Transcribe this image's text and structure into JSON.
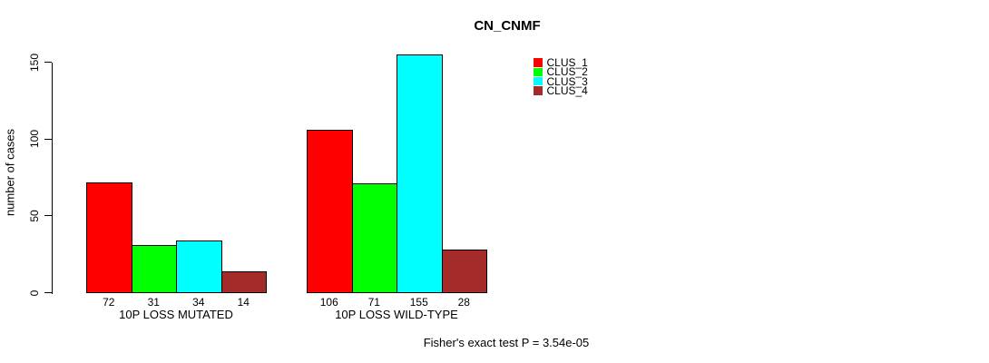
{
  "title": "CN_CNMF",
  "footer": "Fisher's exact test P = 3.54e-05",
  "chart_data": {
    "type": "bar",
    "title": "CN_CNMF",
    "xlabel": "",
    "ylabel": "number of cases",
    "ylim": [
      0,
      150
    ],
    "yticks": [
      0,
      50,
      100,
      150
    ],
    "grid": false,
    "legend_position": "top-right",
    "bar_value_labels": true,
    "categories": [
      "10P LOSS MUTATED",
      "10P LOSS WILD-TYPE"
    ],
    "series": [
      {
        "name": "CLUS_1",
        "color": "#FF0000",
        "values": [
          72,
          106
        ]
      },
      {
        "name": "CLUS_2",
        "color": "#00FF00",
        "values": [
          31,
          71
        ]
      },
      {
        "name": "CLUS_3",
        "color": "#00FFFF",
        "values": [
          34,
          155
        ]
      },
      {
        "name": "CLUS_4",
        "color": "#A52A2A",
        "values": [
          14,
          28
        ]
      }
    ],
    "annotation": "Fisher's exact test P = 3.54e-05"
  }
}
